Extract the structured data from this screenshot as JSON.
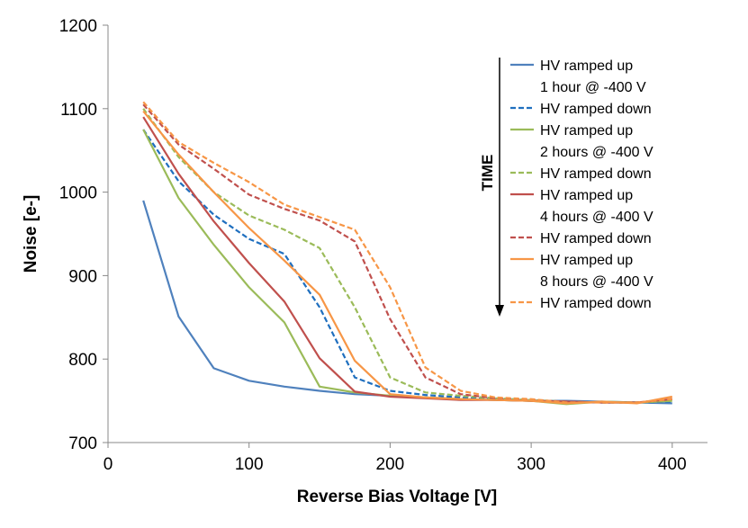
{
  "chart_data": {
    "type": "line",
    "title": "",
    "xlabel": "Reverse Bias Voltage [V]",
    "ylabel": "Noise [e-]",
    "xlim": [
      0,
      425
    ],
    "ylim": [
      700,
      1200
    ],
    "xticks": [
      0,
      100,
      200,
      300,
      400
    ],
    "yticks": [
      700,
      800,
      900,
      1000,
      1100,
      1200
    ],
    "grid": false,
    "legend_position": "right",
    "annotation": "TIME",
    "series": [
      {
        "name": "HV ramped up",
        "sublabel": "1 hour @ -400 V",
        "color": "#4f81bd",
        "dash": "solid",
        "x": [
          25,
          50,
          75,
          100,
          125,
          150,
          175,
          200,
          225,
          250,
          275,
          300,
          325,
          350,
          375,
          400
        ],
        "y": [
          990,
          851,
          789,
          774,
          767,
          762,
          758,
          756,
          754,
          752,
          751,
          750,
          750,
          749,
          748,
          747
        ]
      },
      {
        "name": "HV ramped down",
        "sublabel": "",
        "color": "#1f6fbf",
        "dash": "dashed",
        "x": [
          25,
          50,
          75,
          100,
          125,
          150,
          175,
          200,
          225,
          250,
          275,
          300,
          325,
          350,
          375,
          400
        ],
        "y": [
          1075,
          1013,
          973,
          944,
          926,
          862,
          778,
          762,
          757,
          754,
          752,
          750,
          749,
          748,
          748,
          749
        ]
      },
      {
        "name": "HV ramped up",
        "sublabel": "2 hours @ -400 V",
        "color": "#9bbb59",
        "dash": "solid",
        "x": [
          25,
          50,
          75,
          100,
          125,
          150,
          175,
          200,
          225,
          250,
          275,
          300,
          325,
          350,
          375,
          400
        ],
        "y": [
          1075,
          993,
          937,
          886,
          844,
          767,
          760,
          756,
          754,
          752,
          751,
          750,
          746,
          749,
          748,
          750
        ]
      },
      {
        "name": "HV ramped down",
        "sublabel": "",
        "color": "#9bbb59",
        "dash": "dashed",
        "x": [
          25,
          50,
          75,
          100,
          125,
          150,
          175,
          200,
          225,
          250,
          275,
          300,
          325,
          350,
          375,
          400
        ],
        "y": [
          1100,
          1042,
          1000,
          972,
          955,
          933,
          862,
          778,
          760,
          756,
          753,
          751,
          749,
          748,
          748,
          750
        ]
      },
      {
        "name": "HV ramped up",
        "sublabel": "4 hours @ -400 V",
        "color": "#c0504d",
        "dash": "solid",
        "x": [
          25,
          50,
          75,
          100,
          125,
          150,
          175,
          200,
          225,
          250,
          275,
          300,
          325,
          350,
          375,
          400
        ],
        "y": [
          1090,
          1022,
          965,
          915,
          869,
          801,
          761,
          755,
          753,
          751,
          751,
          750,
          749,
          748,
          748,
          752
        ]
      },
      {
        "name": "HV ramped down",
        "sublabel": "",
        "color": "#c0504d",
        "dash": "dashed",
        "x": [
          25,
          50,
          75,
          100,
          125,
          150,
          175,
          200,
          225,
          250,
          275,
          300,
          325,
          350,
          375,
          400
        ],
        "y": [
          1105,
          1057,
          1028,
          997,
          980,
          966,
          941,
          848,
          778,
          758,
          753,
          751,
          749,
          748,
          748,
          752
        ]
      },
      {
        "name": "HV ramped up",
        "sublabel": "8 hours @ -400 V",
        "color": "#f79646",
        "dash": "solid",
        "x": [
          25,
          50,
          75,
          100,
          125,
          150,
          175,
          200,
          225,
          250,
          275,
          300,
          325,
          350,
          375,
          400
        ],
        "y": [
          1097,
          1045,
          1000,
          957,
          918,
          877,
          798,
          758,
          754,
          752,
          751,
          750,
          747,
          749,
          747,
          755
        ]
      },
      {
        "name": "HV ramped down",
        "sublabel": "",
        "color": "#f79646",
        "dash": "dashed",
        "x": [
          25,
          50,
          75,
          100,
          125,
          150,
          175,
          200,
          225,
          250,
          275,
          300,
          325,
          350,
          375,
          400
        ],
        "y": [
          1108,
          1060,
          1035,
          1012,
          985,
          970,
          955,
          886,
          790,
          762,
          754,
          752,
          748,
          748,
          748,
          752
        ]
      }
    ]
  }
}
